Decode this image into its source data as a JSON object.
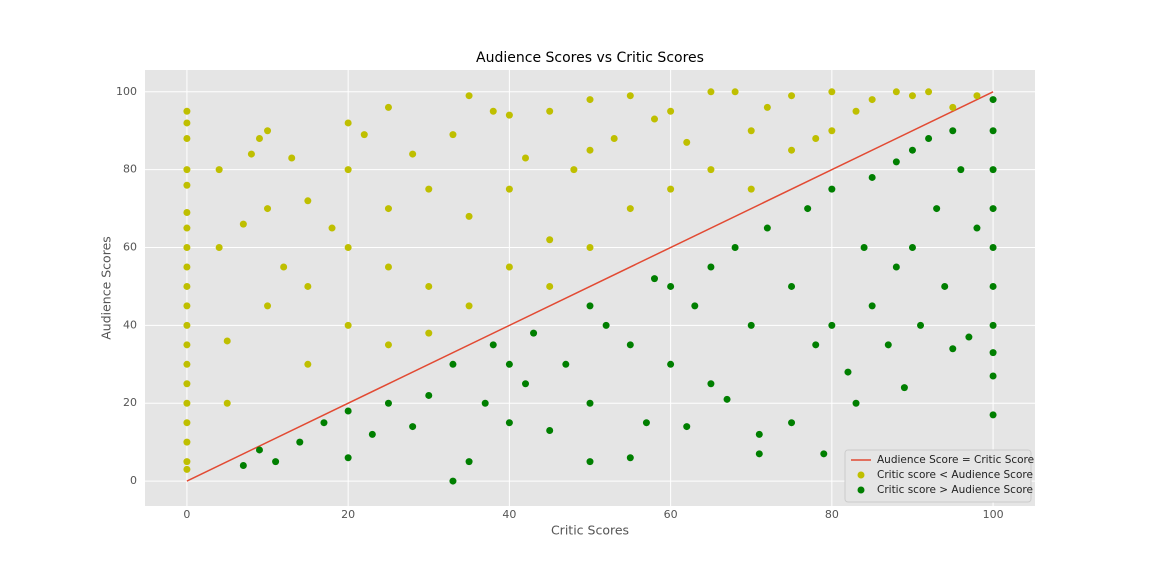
{
  "chart_data": {
    "type": "scatter",
    "title": "Audience Scores vs Critic Scores",
    "xlabel": "Critic Scores",
    "ylabel": "Audience Scores",
    "xlim": [
      -5.2,
      105.2
    ],
    "ylim": [
      -6.4,
      105.6
    ],
    "xticks": [
      0,
      20,
      40,
      60,
      80,
      100
    ],
    "yticks": [
      0,
      20,
      40,
      60,
      80,
      100
    ],
    "grid": true,
    "legend": "lower right",
    "series": [
      {
        "name": "Audience Score = Critic Score",
        "color": "#e24a33",
        "style": "line",
        "x": [
          0,
          100
        ],
        "values": [
          0,
          100
        ]
      },
      {
        "name": "Critic score < Audience Score",
        "color": "#bfbf00",
        "style": "points",
        "x": [
          0,
          0,
          0,
          0,
          0,
          0,
          0,
          0,
          0,
          0,
          0,
          0,
          0,
          0,
          0,
          0,
          0,
          0,
          0,
          0,
          4,
          4,
          5,
          5,
          7,
          8,
          9,
          10,
          10,
          10,
          12,
          13,
          15,
          15,
          15,
          18,
          20,
          20,
          20,
          20,
          22,
          25,
          25,
          25,
          25,
          28,
          30,
          30,
          30,
          33,
          35,
          35,
          35,
          38,
          40,
          40,
          40,
          42,
          45,
          45,
          45,
          48,
          50,
          50,
          50,
          53,
          55,
          55,
          58,
          60,
          60,
          62,
          65,
          65,
          68,
          70,
          70,
          72,
          75,
          75,
          78,
          80,
          80,
          83,
          85,
          88,
          90,
          92,
          95,
          98
        ],
        "values": [
          95,
          92,
          88,
          80,
          76,
          69,
          65,
          60,
          55,
          50,
          45,
          40,
          35,
          30,
          25,
          20,
          15,
          10,
          5,
          3,
          80,
          60,
          36,
          20,
          66,
          84,
          88,
          90,
          70,
          45,
          55,
          83,
          72,
          50,
          30,
          65,
          92,
          80,
          60,
          40,
          89,
          96,
          70,
          55,
          35,
          84,
          75,
          50,
          38,
          89,
          99,
          68,
          45,
          95,
          94,
          75,
          55,
          83,
          95,
          62,
          50,
          80,
          98,
          85,
          60,
          88,
          99,
          70,
          93,
          95,
          75,
          87,
          100,
          80,
          100,
          90,
          75,
          96,
          99,
          85,
          88,
          100,
          90,
          95,
          98,
          100,
          99,
          100,
          96,
          99
        ]
      },
      {
        "name": "Critic score > Audience Score",
        "color": "#007f00",
        "style": "points",
        "x": [
          7,
          9,
          11,
          14,
          17,
          20,
          20,
          23,
          25,
          28,
          30,
          33,
          33,
          35,
          37,
          38,
          40,
          40,
          42,
          43,
          45,
          47,
          50,
          50,
          50,
          52,
          55,
          55,
          57,
          58,
          60,
          60,
          62,
          63,
          65,
          65,
          67,
          68,
          70,
          71,
          71,
          72,
          75,
          75,
          77,
          78,
          79,
          80,
          80,
          82,
          83,
          84,
          85,
          85,
          87,
          88,
          88,
          89,
          90,
          90,
          91,
          92,
          93,
          94,
          95,
          95,
          96,
          97,
          98,
          100,
          100,
          100,
          100,
          100,
          100,
          100,
          100,
          100,
          100
        ],
        "values": [
          4,
          8,
          5,
          10,
          15,
          6,
          18,
          12,
          20,
          14,
          22,
          0,
          30,
          5,
          20,
          35,
          30,
          15,
          25,
          38,
          13,
          30,
          5,
          45,
          20,
          40,
          6,
          35,
          15,
          52,
          30,
          50,
          14,
          45,
          55,
          25,
          21,
          60,
          40,
          7,
          12,
          65,
          15,
          50,
          70,
          35,
          7,
          75,
          40,
          28,
          20,
          60,
          78,
          45,
          35,
          82,
          55,
          24,
          85,
          60,
          40,
          88,
          70,
          50,
          34,
          90,
          80,
          37,
          65,
          98,
          90,
          80,
          70,
          60,
          50,
          40,
          33,
          27,
          17
        ]
      }
    ]
  }
}
